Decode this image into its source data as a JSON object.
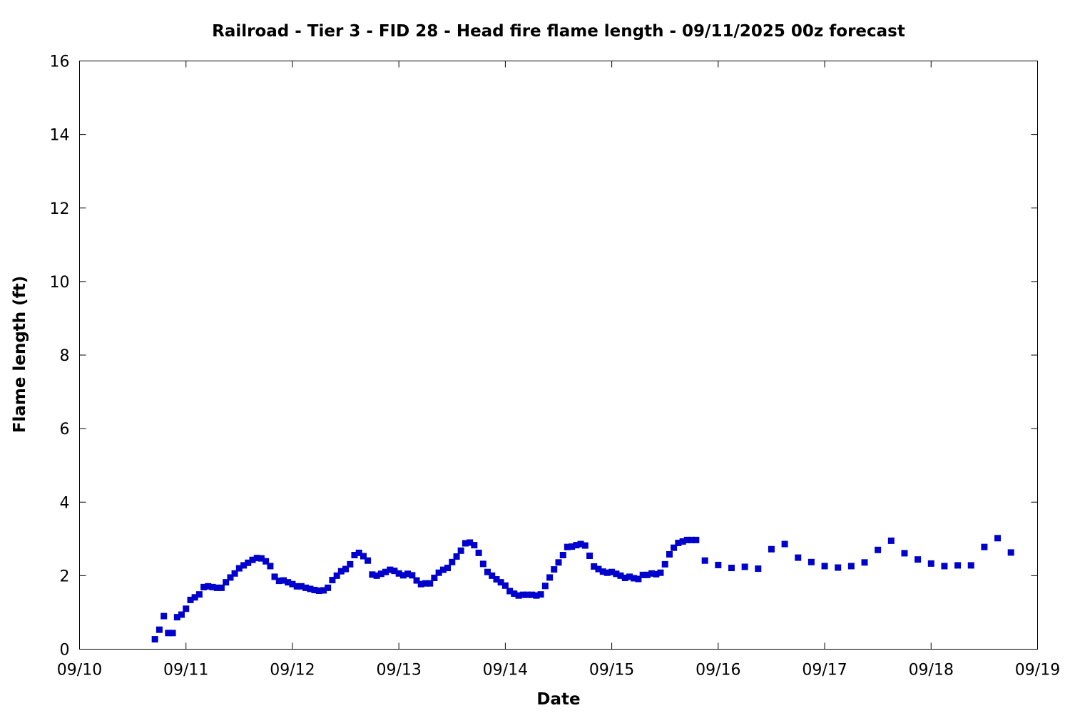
{
  "chart_data": {
    "type": "scatter",
    "title": "Railroad - Tier 3 - FID 28 - Head fire flame length - 09/11/2025 00z forecast",
    "xlabel": "Date",
    "ylabel": "Flame length (ft)",
    "x_unit": "days since 09/10 00:00",
    "xlim": [
      0,
      9
    ],
    "ylim": [
      0,
      16
    ],
    "x_ticks": [
      {
        "value": 0,
        "label": "09/10"
      },
      {
        "value": 1,
        "label": "09/11"
      },
      {
        "value": 2,
        "label": "09/12"
      },
      {
        "value": 3,
        "label": "09/13"
      },
      {
        "value": 4,
        "label": "09/14"
      },
      {
        "value": 5,
        "label": "09/15"
      },
      {
        "value": 6,
        "label": "09/16"
      },
      {
        "value": 7,
        "label": "09/17"
      },
      {
        "value": 8,
        "label": "09/18"
      },
      {
        "value": 9,
        "label": "09/19"
      }
    ],
    "y_ticks": [
      {
        "value": 0,
        "label": "0"
      },
      {
        "value": 2,
        "label": "2"
      },
      {
        "value": 4,
        "label": "4"
      },
      {
        "value": 6,
        "label": "6"
      },
      {
        "value": 8,
        "label": "8"
      },
      {
        "value": 10,
        "label": "10"
      },
      {
        "value": 12,
        "label": "12"
      },
      {
        "value": 14,
        "label": "14"
      },
      {
        "value": 16,
        "label": "16"
      }
    ],
    "grid": false,
    "marker_color": "#0000cc",
    "marker": "square",
    "series": [
      {
        "name": "Head fire flame length",
        "points": [
          [
            0.708,
            0.27
          ],
          [
            0.75,
            0.53
          ],
          [
            0.792,
            0.9
          ],
          [
            0.833,
            0.44
          ],
          [
            0.875,
            0.44
          ],
          [
            0.917,
            0.87
          ],
          [
            0.958,
            0.94
          ],
          [
            1.0,
            1.1
          ],
          [
            1.042,
            1.34
          ],
          [
            1.083,
            1.41
          ],
          [
            1.125,
            1.49
          ],
          [
            1.167,
            1.69
          ],
          [
            1.208,
            1.71
          ],
          [
            1.25,
            1.69
          ],
          [
            1.292,
            1.67
          ],
          [
            1.333,
            1.67
          ],
          [
            1.375,
            1.82
          ],
          [
            1.417,
            1.95
          ],
          [
            1.458,
            2.06
          ],
          [
            1.5,
            2.2
          ],
          [
            1.542,
            2.28
          ],
          [
            1.583,
            2.35
          ],
          [
            1.625,
            2.43
          ],
          [
            1.667,
            2.48
          ],
          [
            1.708,
            2.47
          ],
          [
            1.75,
            2.39
          ],
          [
            1.792,
            2.26
          ],
          [
            1.833,
            1.97
          ],
          [
            1.875,
            1.86
          ],
          [
            1.917,
            1.87
          ],
          [
            1.958,
            1.82
          ],
          [
            2.0,
            1.77
          ],
          [
            2.042,
            1.71
          ],
          [
            2.083,
            1.71
          ],
          [
            2.125,
            1.67
          ],
          [
            2.167,
            1.64
          ],
          [
            2.208,
            1.61
          ],
          [
            2.25,
            1.59
          ],
          [
            2.292,
            1.6
          ],
          [
            2.333,
            1.67
          ],
          [
            2.375,
            1.88
          ],
          [
            2.417,
            2.0
          ],
          [
            2.458,
            2.12
          ],
          [
            2.5,
            2.18
          ],
          [
            2.542,
            2.31
          ],
          [
            2.583,
            2.56
          ],
          [
            2.625,
            2.62
          ],
          [
            2.667,
            2.53
          ],
          [
            2.708,
            2.41
          ],
          [
            2.75,
            2.03
          ],
          [
            2.792,
            2.0
          ],
          [
            2.833,
            2.05
          ],
          [
            2.875,
            2.1
          ],
          [
            2.917,
            2.16
          ],
          [
            2.958,
            2.13
          ],
          [
            3.0,
            2.06
          ],
          [
            3.042,
            2.01
          ],
          [
            3.083,
            2.05
          ],
          [
            3.125,
            2.01
          ],
          [
            3.167,
            1.87
          ],
          [
            3.208,
            1.77
          ],
          [
            3.25,
            1.79
          ],
          [
            3.292,
            1.79
          ],
          [
            3.333,
            1.94
          ],
          [
            3.375,
            2.08
          ],
          [
            3.417,
            2.16
          ],
          [
            3.458,
            2.21
          ],
          [
            3.5,
            2.37
          ],
          [
            3.542,
            2.52
          ],
          [
            3.583,
            2.68
          ],
          [
            3.625,
            2.88
          ],
          [
            3.667,
            2.9
          ],
          [
            3.708,
            2.83
          ],
          [
            3.75,
            2.62
          ],
          [
            3.792,
            2.32
          ],
          [
            3.833,
            2.1
          ],
          [
            3.875,
            2.0
          ],
          [
            3.917,
            1.9
          ],
          [
            3.958,
            1.82
          ],
          [
            4.0,
            1.73
          ],
          [
            4.042,
            1.58
          ],
          [
            4.083,
            1.51
          ],
          [
            4.125,
            1.46
          ],
          [
            4.167,
            1.48
          ],
          [
            4.208,
            1.48
          ],
          [
            4.25,
            1.48
          ],
          [
            4.292,
            1.46
          ],
          [
            4.333,
            1.49
          ],
          [
            4.375,
            1.72
          ],
          [
            4.417,
            1.95
          ],
          [
            4.458,
            2.17
          ],
          [
            4.5,
            2.36
          ],
          [
            4.542,
            2.56
          ],
          [
            4.583,
            2.78
          ],
          [
            4.625,
            2.79
          ],
          [
            4.667,
            2.83
          ],
          [
            4.708,
            2.86
          ],
          [
            4.75,
            2.82
          ],
          [
            4.792,
            2.54
          ],
          [
            4.833,
            2.25
          ],
          [
            4.875,
            2.18
          ],
          [
            4.917,
            2.11
          ],
          [
            4.958,
            2.08
          ],
          [
            5.0,
            2.1
          ],
          [
            5.042,
            2.05
          ],
          [
            5.083,
            2.0
          ],
          [
            5.125,
            1.94
          ],
          [
            5.167,
            1.97
          ],
          [
            5.208,
            1.93
          ],
          [
            5.25,
            1.91
          ],
          [
            5.292,
            2.02
          ],
          [
            5.333,
            2.02
          ],
          [
            5.375,
            2.06
          ],
          [
            5.417,
            2.04
          ],
          [
            5.458,
            2.08
          ],
          [
            5.5,
            2.31
          ],
          [
            5.542,
            2.58
          ],
          [
            5.583,
            2.76
          ],
          [
            5.625,
            2.89
          ],
          [
            5.667,
            2.93
          ],
          [
            5.708,
            2.97
          ],
          [
            5.75,
            2.97
          ],
          [
            5.792,
            2.97
          ],
          [
            5.875,
            2.41
          ],
          [
            6.0,
            2.29
          ],
          [
            6.125,
            2.21
          ],
          [
            6.25,
            2.24
          ],
          [
            6.375,
            2.19
          ],
          [
            6.5,
            2.72
          ],
          [
            6.625,
            2.86
          ],
          [
            6.75,
            2.49
          ],
          [
            6.875,
            2.37
          ],
          [
            7.0,
            2.26
          ],
          [
            7.125,
            2.22
          ],
          [
            7.25,
            2.26
          ],
          [
            7.375,
            2.36
          ],
          [
            7.5,
            2.7
          ],
          [
            7.625,
            2.95
          ],
          [
            7.75,
            2.61
          ],
          [
            7.875,
            2.44
          ],
          [
            8.0,
            2.33
          ],
          [
            8.125,
            2.26
          ],
          [
            8.25,
            2.28
          ],
          [
            8.375,
            2.28
          ],
          [
            8.5,
            2.78
          ],
          [
            8.625,
            3.02
          ],
          [
            8.75,
            2.63
          ]
        ]
      }
    ]
  }
}
